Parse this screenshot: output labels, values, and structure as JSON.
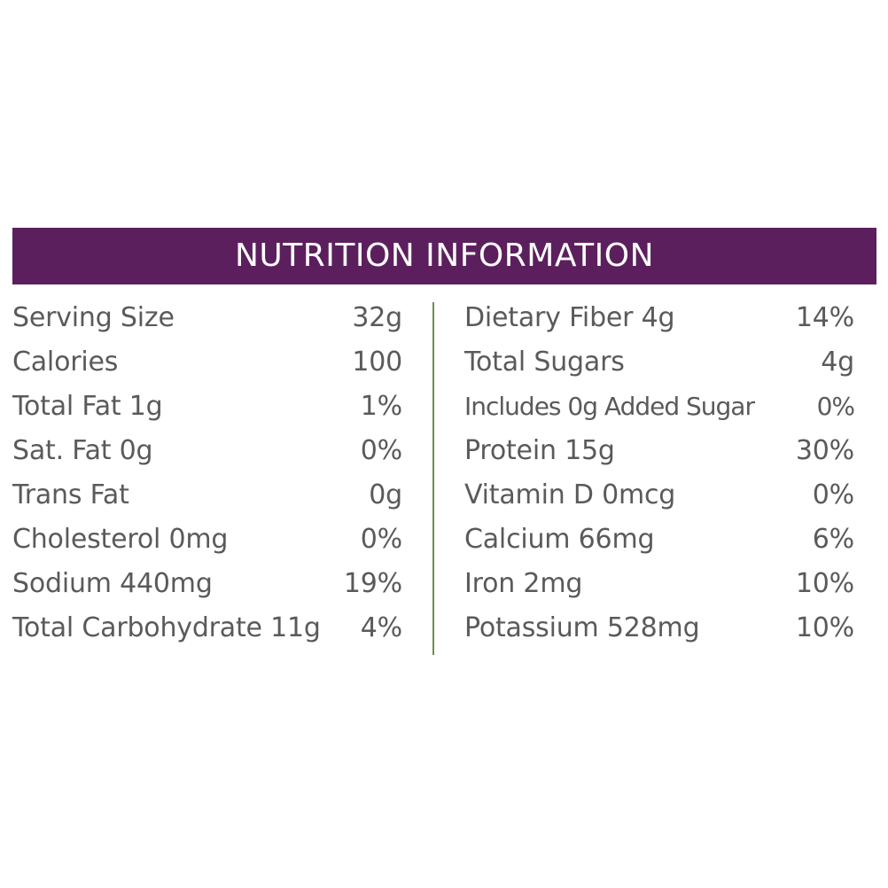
{
  "header": {
    "title": "NUTRITION INFORMATION"
  },
  "colors": {
    "header_bg": "#5c1f5e",
    "divider": "#6a8f4e",
    "text": "#5a5a5a"
  },
  "left_column": [
    {
      "name": "Serving Size",
      "value": "32g"
    },
    {
      "name": "Calories",
      "value": "100"
    },
    {
      "name": "Total Fat 1g",
      "value": "1%"
    },
    {
      "name": "Sat. Fat 0g",
      "value": "0%"
    },
    {
      "name": "Trans Fat",
      "value": "0g"
    },
    {
      "name": "Cholesterol 0mg",
      "value": "0%"
    },
    {
      "name": "Sodium 440mg",
      "value": "19%"
    },
    {
      "name": "Total Carbohydrate 11g",
      "value": "4%"
    }
  ],
  "right_column": [
    {
      "name": "Dietary Fiber 4g",
      "value": "14%"
    },
    {
      "name": "Total Sugars",
      "value": "4g"
    },
    {
      "name": "Includes 0g Added Sugar",
      "value": "0%"
    },
    {
      "name": "Protein 15g",
      "value": "30%"
    },
    {
      "name": "Vitamin D 0mcg",
      "value": "0%"
    },
    {
      "name": "Calcium 66mg",
      "value": "6%"
    },
    {
      "name": "Iron 2mg",
      "value": "10%"
    },
    {
      "name": "Potassium 528mg",
      "value": "10%"
    }
  ]
}
